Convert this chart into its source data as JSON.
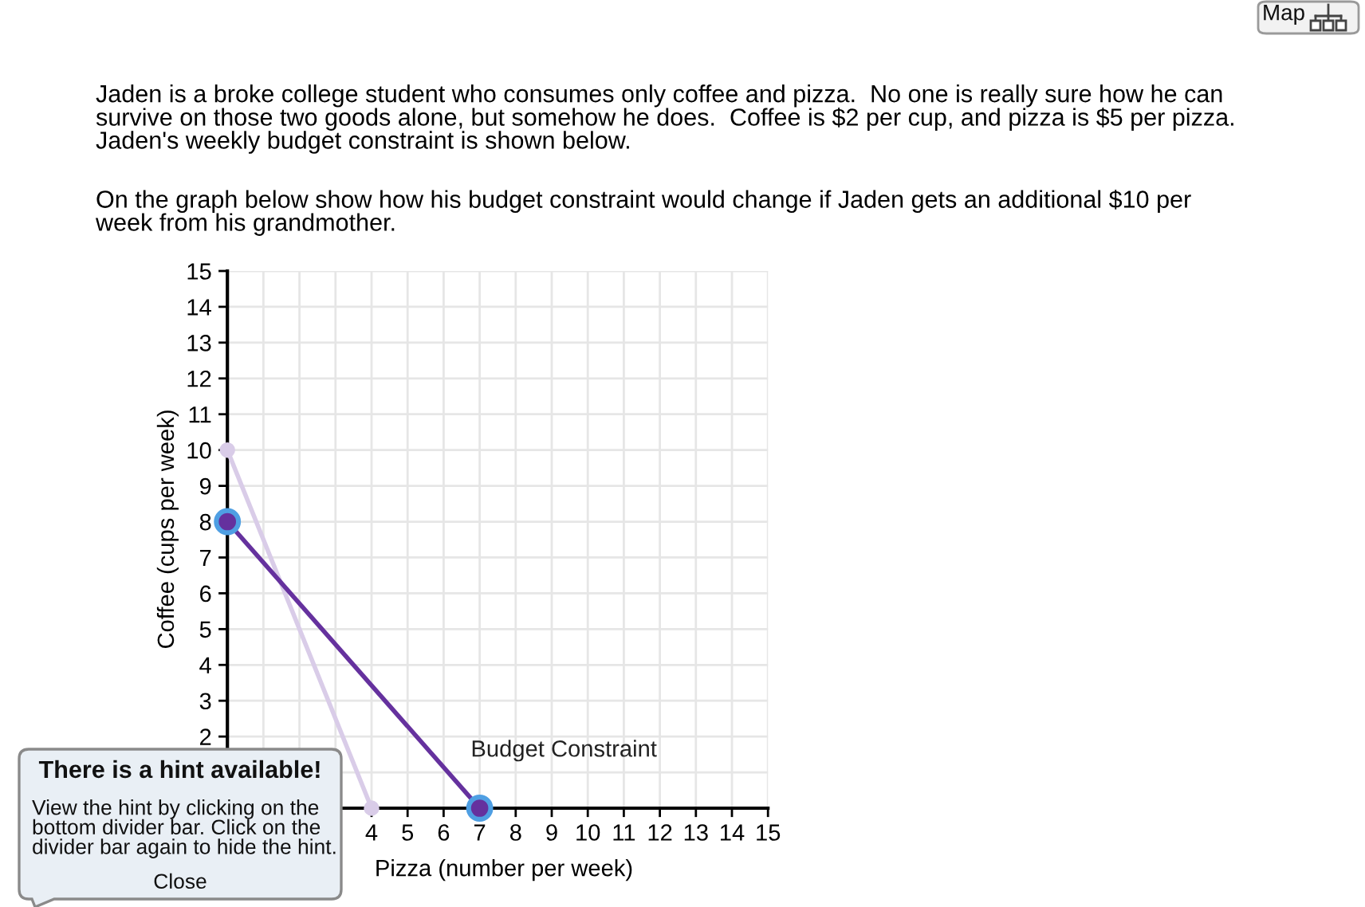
{
  "chart_data": {
    "type": "line",
    "title": "Jaden is a broke college student who consumes only coffee and pizza.  No one is really sure how he can\nsurvive on those two goods alone, but somehow he does.  Coffee is $2 per cup, and pizza is $5 per pizza.\nJaden's weekly budget constraint is shown below.",
    "subtitle": "On the graph below show how his budget constraint would change if Jaden gets an additional $10 per\nweek from his grandmother.",
    "xlabel": "Pizza (number per week)",
    "ylabel": "Coffee (cups per week)",
    "series": [
      {
        "color": "#d9cce8",
        "x": [
          0,
          4
        ],
        "values": [
          10,
          0
        ]
      },
      {
        "name": "Budget Constraint",
        "color": "#65319e",
        "x": [
          0,
          7
        ],
        "values": [
          8,
          0
        ]
      }
    ],
    "xlim": [
      0,
      15
    ],
    "ylim": [
      0,
      15
    ],
    "xticks": [
      {
        "value": 1,
        "label": null
      },
      {
        "value": 2,
        "label": null
      },
      {
        "value": 3,
        "label": null
      },
      4,
      5,
      6,
      7,
      8,
      9,
      10,
      11,
      12,
      13,
      14,
      15
    ],
    "yticks": [
      {
        "value": 1,
        "label": null
      },
      2,
      3,
      4,
      5,
      6,
      7,
      8,
      9,
      10,
      11,
      12,
      13,
      14,
      15
    ],
    "grid": true,
    "legend": false,
    "marker": "circle",
    "line_style": "solid",
    "annotations": [
      "There is a hint available!",
      "View the hint by clicking on the\nbottom divider bar. Click on the\ndivider bar again to hide the hint.",
      "Close",
      "Map"
    ]
  }
}
